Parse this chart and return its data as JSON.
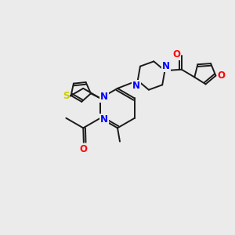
{
  "background_color": "#ebebeb",
  "bond_color": "#1a1a1a",
  "nitrogen_color": "#0000ff",
  "oxygen_color": "#ff0000",
  "sulfur_color": "#cccc00",
  "figsize": [
    3.0,
    3.0
  ],
  "dpi": 100,
  "xlim": [
    0,
    10
  ],
  "ylim": [
    0,
    10
  ],
  "lw": 1.4,
  "fs": 8.5
}
